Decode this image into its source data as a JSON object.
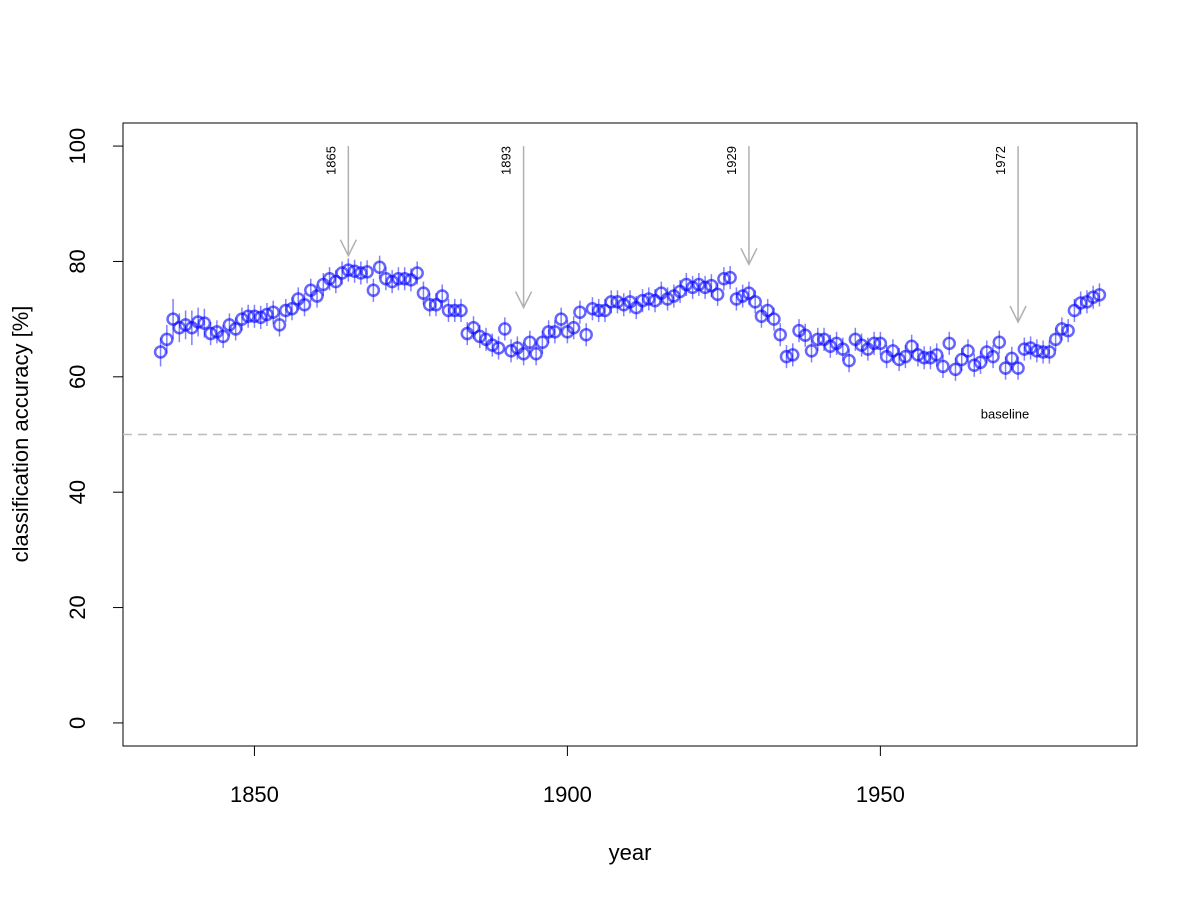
{
  "chart_data": {
    "type": "scatter",
    "xlabel": "year",
    "ylabel": "classification accuracy [%]",
    "xlim": [
      1829,
      1991
    ],
    "ylim": [
      -4,
      104
    ],
    "xticks": [
      1850,
      1900,
      1950
    ],
    "yticks": [
      0,
      20,
      40,
      60,
      80,
      100
    ],
    "series": [
      {
        "color": "#0000ff",
        "x": [
          1835,
          1836,
          1837,
          1838,
          1839,
          1840,
          1841,
          1842,
          1843,
          1844,
          1845,
          1846,
          1847,
          1848,
          1849,
          1850,
          1851,
          1852,
          1853,
          1854,
          1855,
          1856,
          1857,
          1858,
          1859,
          1860,
          1861,
          1862,
          1863,
          1864,
          1865,
          1866,
          1867,
          1868,
          1869,
          1870,
          1871,
          1872,
          1873,
          1874,
          1875,
          1876,
          1877,
          1878,
          1879,
          1880,
          1881,
          1882,
          1883,
          1884,
          1885,
          1886,
          1887,
          1888,
          1889,
          1890,
          1891,
          1892,
          1893,
          1894,
          1895,
          1896,
          1897,
          1898,
          1899,
          1900,
          1901,
          1902,
          1903,
          1904,
          1905,
          1906,
          1907,
          1908,
          1909,
          1910,
          1911,
          1912,
          1913,
          1914,
          1915,
          1916,
          1917,
          1918,
          1919,
          1920,
          1921,
          1922,
          1923,
          1924,
          1925,
          1926,
          1927,
          1928,
          1929,
          1930,
          1931,
          1932,
          1933,
          1934,
          1935,
          1936,
          1937,
          1938,
          1939,
          1940,
          1941,
          1942,
          1943,
          1944,
          1945,
          1946,
          1947,
          1948,
          1949,
          1950,
          1951,
          1952,
          1953,
          1954,
          1955,
          1956,
          1957,
          1958,
          1959,
          1960,
          1961,
          1962,
          1963,
          1964,
          1965,
          1966,
          1967,
          1968,
          1969,
          1970,
          1971,
          1972,
          1973,
          1974,
          1975,
          1976,
          1977,
          1978,
          1979,
          1980,
          1981,
          1982,
          1983,
          1984,
          1985
        ],
        "values": [
          64.3,
          66.5,
          70,
          68.5,
          69,
          68.5,
          69.5,
          69.3,
          67.5,
          67.8,
          67,
          69,
          68.3,
          70,
          70.5,
          70.5,
          70.3,
          70.8,
          71.2,
          69,
          71.5,
          71.8,
          73.5,
          72.5,
          75,
          74,
          76,
          77,
          76.5,
          78,
          78.5,
          78.3,
          78,
          78.2,
          75,
          79,
          77,
          76.5,
          77,
          77,
          76.8,
          78,
          74.5,
          72.5,
          72.5,
          74,
          71.5,
          71.5,
          71.5,
          67.5,
          68.5,
          67,
          66.5,
          65.5,
          65,
          68.3,
          64.5,
          65,
          64,
          66,
          64,
          66,
          67.8,
          67.8,
          70,
          67.8,
          68.5,
          71.2,
          67.3,
          71.8,
          71.5,
          71.5,
          73,
          73,
          72.5,
          73,
          72,
          73.2,
          73.5,
          73.2,
          74.5,
          73.5,
          74,
          74.8,
          76,
          75.5,
          76,
          75.5,
          75.8,
          74.3,
          77,
          77.2,
          73.5,
          74,
          74.5,
          73,
          70.5,
          71.5,
          70,
          67.3,
          63.5,
          63.8,
          68,
          67.2,
          64.5,
          66.5,
          66.5,
          65.3,
          65.8,
          64.8,
          62.8,
          66.5,
          65.5,
          64.8,
          65.8,
          65.8,
          63.5,
          64.5,
          63,
          63.5,
          65.3,
          63.8,
          63.3,
          63.3,
          63.8,
          61.8,
          65.8,
          61.3,
          63,
          64.5,
          62,
          62.5,
          64.3,
          63.5,
          66,
          61.5,
          63.2,
          61.5,
          64.8,
          65,
          64.5,
          64.3,
          64.3,
          66.5,
          68.3,
          68,
          71.5,
          72.8,
          73,
          73.8,
          74.2
        ],
        "errors": [
          2.5,
          2.5,
          3.5,
          2.5,
          2.5,
          3,
          2.5,
          2.5,
          2,
          2,
          2,
          2,
          2,
          2,
          2,
          2,
          2,
          2,
          2,
          2,
          2,
          2,
          2,
          2,
          2,
          2,
          2,
          2,
          2,
          2,
          2,
          2,
          2,
          2,
          2,
          2,
          2,
          2,
          2,
          2,
          2,
          2,
          2,
          2,
          2,
          2,
          2,
          2,
          2,
          2,
          2,
          2,
          2,
          2,
          2,
          2,
          2,
          2,
          2,
          2,
          2,
          2,
          2,
          2,
          2,
          2,
          2,
          2,
          2,
          2,
          2,
          2,
          2,
          2,
          2,
          2,
          2,
          2,
          2,
          2,
          2,
          2,
          2,
          2,
          2,
          2,
          2,
          2,
          2,
          2,
          2,
          2,
          2,
          2,
          2,
          2,
          2,
          2,
          2,
          2,
          2,
          2,
          2,
          2,
          2,
          2,
          2,
          2,
          2,
          2,
          2,
          2,
          2,
          2,
          2,
          2,
          2,
          2,
          2,
          2,
          2,
          2,
          2,
          2,
          2,
          2,
          2,
          2,
          2,
          2,
          2,
          2,
          2,
          2,
          2,
          2,
          2,
          2,
          2,
          2,
          2,
          2,
          2,
          2,
          2,
          2,
          2,
          2,
          2,
          2,
          2
        ]
      }
    ],
    "annotations": [
      {
        "x": 1865,
        "y_from": 100,
        "y_to": 81
      },
      {
        "x": 1893,
        "y_from": 100,
        "y_to": 72
      },
      {
        "x": 1929,
        "y_from": 100,
        "y_to": 79.5
      },
      {
        "x": 1972,
        "y_from": 100,
        "y_to": 69.5
      }
    ],
    "baseline": {
      "label": "baseline",
      "y": 50
    }
  }
}
